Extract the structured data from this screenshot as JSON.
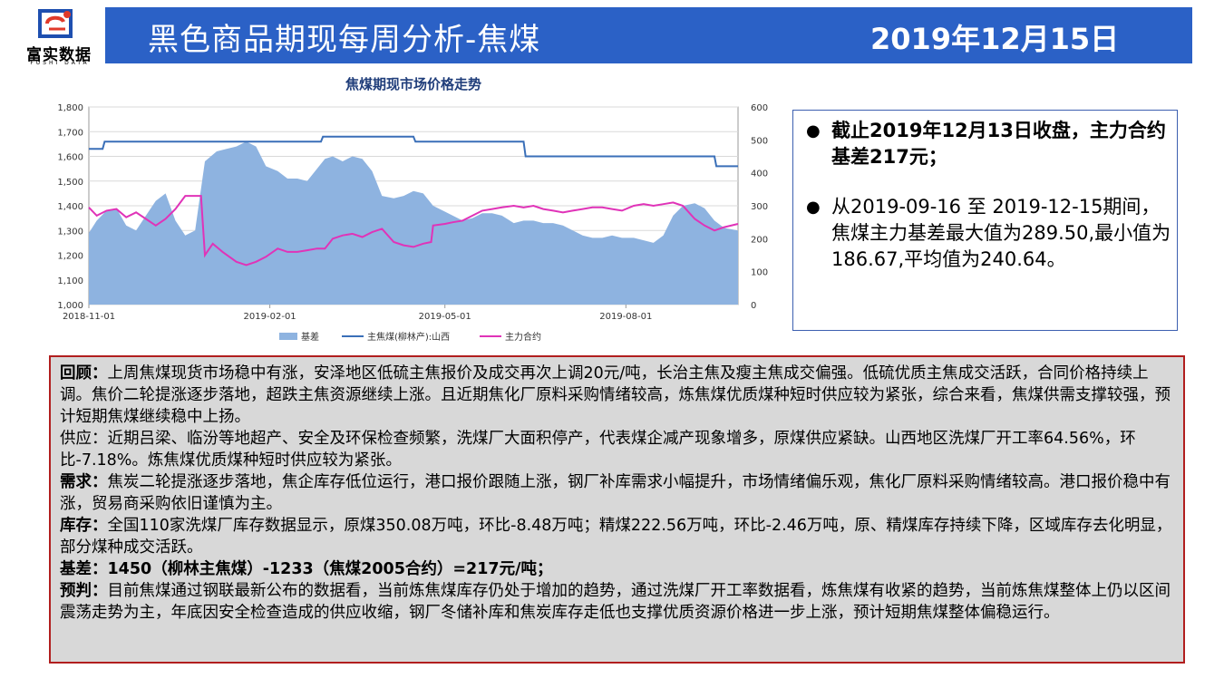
{
  "logo": {
    "text": "富实数据",
    "sub": "FUSHI DATA"
  },
  "header": {
    "title": "黑色商品期现每周分析-焦煤",
    "date": "2019年12月15日"
  },
  "colors": {
    "header": "#2b61c6",
    "area": "#8eb3e0",
    "spot_line": "#3a6fb8",
    "basis_line": "#e033b8",
    "border": "#b11e1e"
  },
  "chart_data": {
    "type": "area",
    "title": "焦煤期现市场价格走势",
    "left_axis": {
      "min": 1000,
      "max": 1800,
      "ticks": [
        "1,000",
        "1,100",
        "1,200",
        "1,300",
        "1,400",
        "1,500",
        "1,600",
        "1,700",
        "1,800"
      ]
    },
    "right_axis": {
      "min": 0,
      "max": 600,
      "ticks": [
        "0",
        "100",
        "200",
        "300",
        "400",
        "500",
        "600"
      ]
    },
    "x_ticks": [
      "2018-11-01",
      "2019-02-01",
      "2019-05-01",
      "2019-08-01"
    ],
    "x_range": [
      "2018-11-01",
      "2019-09-27"
    ],
    "series": [
      {
        "name": "基差",
        "type": "area",
        "axis": "left",
        "dates": [
          "2018-11-01",
          "2018-11-05",
          "2018-11-10",
          "2018-11-15",
          "2018-11-20",
          "2018-11-25",
          "2018-11-30",
          "2018-12-05",
          "2018-12-10",
          "2018-12-15",
          "2018-12-20",
          "2018-12-25",
          "2018-12-30",
          "2019-01-05",
          "2019-01-10",
          "2019-01-15",
          "2019-01-20",
          "2019-01-25",
          "2019-01-30",
          "2019-02-05",
          "2019-02-10",
          "2019-02-15",
          "2019-02-20",
          "2019-02-25",
          "2019-03-01",
          "2019-03-05",
          "2019-03-10",
          "2019-03-15",
          "2019-03-20",
          "2019-03-25",
          "2019-03-30",
          "2019-04-05",
          "2019-04-10",
          "2019-04-15",
          "2019-04-20",
          "2019-04-25",
          "2019-04-30",
          "2019-05-05",
          "2019-05-10",
          "2019-05-15",
          "2019-05-20",
          "2019-05-25",
          "2019-05-30",
          "2019-06-05",
          "2019-06-10",
          "2019-06-15",
          "2019-06-20",
          "2019-06-25",
          "2019-06-30",
          "2019-07-05",
          "2019-07-10",
          "2019-07-15",
          "2019-07-20",
          "2019-07-25",
          "2019-07-30",
          "2019-08-05",
          "2019-08-10",
          "2019-08-15",
          "2019-08-20",
          "2019-08-25",
          "2019-08-30",
          "2019-09-05",
          "2019-09-10",
          "2019-09-15",
          "2019-09-20",
          "2019-09-27"
        ],
        "values": [
          1290,
          1340,
          1380,
          1390,
          1320,
          1300,
          1360,
          1420,
          1450,
          1340,
          1280,
          1300,
          1580,
          1620,
          1630,
          1640,
          1660,
          1640,
          1560,
          1540,
          1510,
          1510,
          1500,
          1550,
          1590,
          1600,
          1580,
          1600,
          1590,
          1540,
          1440,
          1430,
          1440,
          1460,
          1450,
          1400,
          1380,
          1360,
          1340,
          1350,
          1370,
          1370,
          1360,
          1330,
          1340,
          1340,
          1330,
          1330,
          1320,
          1300,
          1280,
          1270,
          1270,
          1280,
          1270,
          1270,
          1260,
          1250,
          1280,
          1360,
          1400,
          1410,
          1390,
          1340,
          1310,
          1300
        ]
      },
      {
        "name": "主焦煤(柳林产):山西",
        "type": "line",
        "axis": "left",
        "dates": [
          "2018-11-01",
          "2018-11-08",
          "2018-11-09",
          "2019-02-27",
          "2019-02-28",
          "2019-04-15",
          "2019-04-16",
          "2019-06-10",
          "2019-06-11",
          "2019-09-15",
          "2019-09-16",
          "2019-09-27"
        ],
        "values": [
          1630,
          1630,
          1660,
          1660,
          1680,
          1680,
          1660,
          1660,
          1600,
          1600,
          1560,
          1560
        ]
      },
      {
        "name": "主力合约",
        "type": "line",
        "axis": "right",
        "dates": [
          "2018-11-01",
          "2018-11-05",
          "2018-11-10",
          "2018-11-15",
          "2018-11-20",
          "2018-11-25",
          "2018-11-30",
          "2018-12-05",
          "2018-12-10",
          "2018-12-15",
          "2018-12-20",
          "2018-12-25",
          "2018-12-28",
          "2018-12-30",
          "2019-01-03",
          "2019-01-08",
          "2019-01-15",
          "2019-01-20",
          "2019-01-25",
          "2019-01-30",
          "2019-02-05",
          "2019-02-10",
          "2019-02-15",
          "2019-02-20",
          "2019-02-25",
          "2019-03-01",
          "2019-03-05",
          "2019-03-10",
          "2019-03-15",
          "2019-03-20",
          "2019-03-25",
          "2019-03-30",
          "2019-04-05",
          "2019-04-10",
          "2019-04-15",
          "2019-04-20",
          "2019-04-24",
          "2019-04-25",
          "2019-05-01",
          "2019-05-05",
          "2019-05-10",
          "2019-05-15",
          "2019-05-20",
          "2019-05-25",
          "2019-05-30",
          "2019-06-05",
          "2019-06-10",
          "2019-06-15",
          "2019-06-20",
          "2019-06-25",
          "2019-06-30",
          "2019-07-05",
          "2019-07-10",
          "2019-07-15",
          "2019-07-20",
          "2019-07-25",
          "2019-07-30",
          "2019-08-05",
          "2019-08-10",
          "2019-08-15",
          "2019-08-20",
          "2019-08-25",
          "2019-08-30",
          "2019-09-05",
          "2019-09-10",
          "2019-09-15",
          "2019-09-20",
          "2019-09-27"
        ],
        "values": [
          295,
          270,
          285,
          290,
          265,
          280,
          260,
          240,
          260,
          290,
          330,
          330,
          330,
          150,
          185,
          160,
          130,
          120,
          130,
          145,
          170,
          160,
          160,
          165,
          170,
          170,
          200,
          210,
          215,
          205,
          220,
          230,
          190,
          180,
          175,
          185,
          190,
          240,
          245,
          250,
          255,
          270,
          285,
          290,
          295,
          300,
          295,
          300,
          290,
          285,
          280,
          285,
          290,
          295,
          295,
          290,
          285,
          300,
          305,
          300,
          305,
          310,
          300,
          260,
          240,
          225,
          235,
          245
        ]
      }
    ]
  },
  "notes": [
    "截止2019年12月13日收盘，主力合约基差217元；",
    "从2019-09-16 至 2019-12-15期间，焦煤主力基差最大值为289.50,最小值为186.67,平均值为240.64。"
  ],
  "analysis": {
    "review": {
      "label": "回顾：",
      "text": "上周焦煤现货市场稳中有涨，安泽地区低硫主焦报价及成交再次上调20元/吨，长治主焦及瘦主焦成交偏强。低硫优质主焦成交活跃，合同价格持续上调。焦价二轮提涨逐步落地，超跌主焦资源继续上涨。且近期焦化厂原料采购情绪较高，炼焦煤优质煤种短时供应较为紧张，综合来看，焦煤供需支撑较强，预计短期焦煤继续稳中上扬。"
    },
    "supply": {
      "label": "供应：",
      "text": "近期吕梁、临汾等地超产、安全及环保检查频繁，洗煤厂大面积停产，代表煤企减产现象增多，原煤供应紧缺。山西地区洗煤厂开工率64.56%，环比-7.18%。炼焦煤优质煤种短时供应较为紧张。"
    },
    "demand": {
      "label": "需求：",
      "text": "焦炭二轮提涨逐步落地，焦企库存低位运行，港口报价跟随上涨，钢厂补库需求小幅提升，市场情绪偏乐观，焦化厂原料采购情绪较高。港口报价稳中有涨，贸易商采购依旧谨慎为主。"
    },
    "inventory": {
      "label": "库存：",
      "text": "全国110家洗煤厂库存数据显示，原煤350.08万吨，环比-8.48万吨；精煤222.56万吨，环比-2.46万吨，原、精煤库存持续下降，区域库存去化明显，部分煤种成交活跃。"
    },
    "basis": "基差：1450（柳林主焦煤）-1233（焦煤2005合约）=217元/吨；",
    "forecast": {
      "label": "预判：",
      "text": "目前焦煤通过钢联最新公布的数据看，当前炼焦煤库存仍处于增加的趋势，通过洗煤厂开工率数据看，炼焦煤有收紧的趋势，当前炼焦煤整体上仍以区间震荡走势为主，年底因安全检查造成的供应收缩，钢厂冬储补库和焦炭库存走低也支撑优质资源价格进一步上涨，预计短期焦煤整体偏稳运行。"
    }
  }
}
